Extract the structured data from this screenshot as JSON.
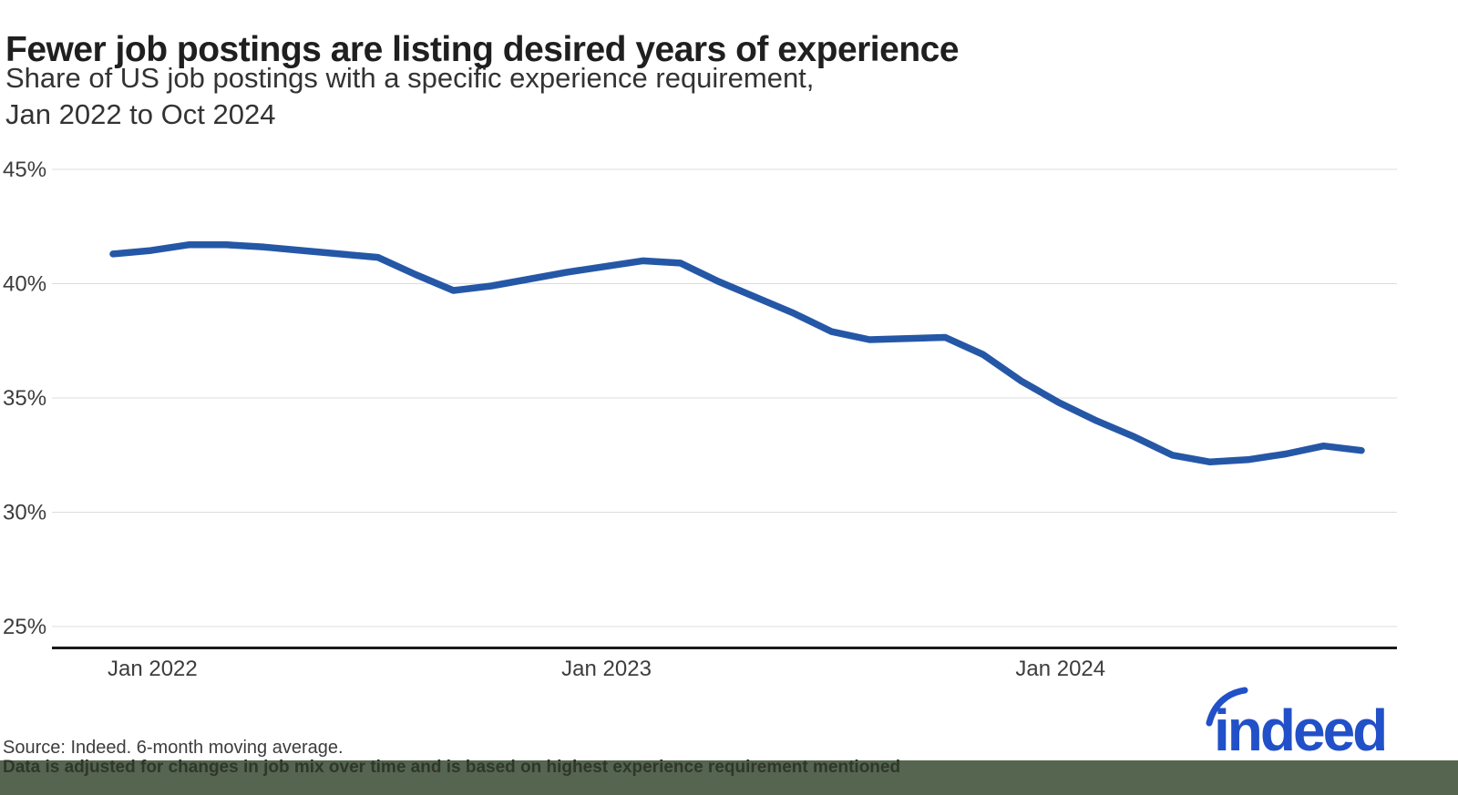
{
  "chart_data": {
    "type": "line",
    "title": "Fewer job postings are listing desired years of experience",
    "subtitle": "Share of US job postings with a specific experience requirement,\nJan 2022 to Oct 2024",
    "series_name": "Share of US job postings with a specific experience requirement",
    "x": [
      "Jan 2022",
      "Feb 2022",
      "Mar 2022",
      "Apr 2022",
      "May 2022",
      "Jun 2022",
      "Jul 2022",
      "Aug 2022",
      "Sep 2022",
      "Oct 2022",
      "Nov 2022",
      "Dec 2022",
      "Jan 2023",
      "Feb 2023",
      "Mar 2023",
      "Apr 2023",
      "May 2023",
      "Jun 2023",
      "Jul 2023",
      "Aug 2023",
      "Sep 2023",
      "Oct 2023",
      "Nov 2023",
      "Dec 2023",
      "Jan 2024",
      "Feb 2024",
      "Mar 2024",
      "Apr 2024",
      "May 2024",
      "Jun 2024",
      "Jul 2024",
      "Aug 2024",
      "Sep 2024",
      "Oct 2024"
    ],
    "values": [
      41.3,
      41.45,
      41.7,
      41.7,
      41.6,
      41.45,
      41.3,
      41.15,
      40.4,
      39.7,
      39.9,
      40.2,
      40.5,
      40.75,
      41.0,
      40.9,
      40.1,
      39.4,
      38.7,
      37.9,
      37.55,
      37.6,
      37.65,
      36.9,
      35.75,
      34.8,
      34.0,
      33.3,
      32.5,
      32.2,
      32.3,
      32.55,
      32.9,
      32.7
    ],
    "unit": "%",
    "y_ticks": [
      {
        "label": "45%",
        "value": 45
      },
      {
        "label": "40%",
        "value": 40
      },
      {
        "label": "35%",
        "value": 35
      },
      {
        "label": "30%",
        "value": 30
      },
      {
        "label": "25%",
        "value": 25
      }
    ],
    "x_ticks": [
      {
        "label": "Jan 2022",
        "month_index": 0
      },
      {
        "label": "Jan 2023",
        "month_index": 12
      },
      {
        "label": "Jan 2024",
        "month_index": 24
      }
    ],
    "ylim": [
      24.1,
      45
    ],
    "grid": true,
    "legend": "none",
    "line_color": "#2557a7",
    "gridline_color": "#dcdcdc",
    "axis_color": "#1a1a1a",
    "tick_label_color": "#3d3d3d"
  },
  "footer": {
    "source_line": "Source: Indeed. 6-month moving average.",
    "note_line": "Data is adjusted for changes in job mix over time and is based on highest experience requirement mentioned"
  },
  "logo": {
    "text": "indeed",
    "color": "#2150c8"
  }
}
